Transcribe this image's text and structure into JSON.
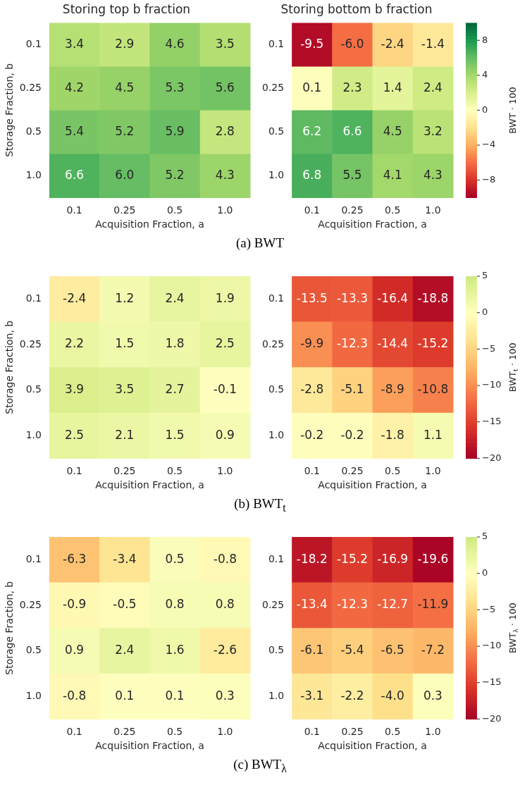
{
  "chart_data": [
    {
      "type": "heatmap",
      "title": "Storing top b fraction",
      "xlabel": "Acquisition Fraction, a",
      "ylabel": "Storage Fraction, b",
      "categories": [
        "0.1",
        "0.25",
        "0.5",
        "1.0"
      ],
      "y_categories": [
        "0.1",
        "0.25",
        "0.5",
        "1.0"
      ],
      "data_labels": true,
      "cells": [
        [
          3.4,
          2.9,
          4.6,
          3.5
        ],
        [
          4.2,
          4.5,
          5.3,
          5.6
        ],
        [
          5.4,
          5.2,
          5.9,
          2.8
        ],
        [
          6.6,
          6.0,
          5.2,
          4.3
        ]
      ],
      "cell_labels": [
        [
          "3.4",
          "2.9",
          "4.6",
          "3.5"
        ],
        [
          "4.2",
          "4.5",
          "5.3",
          "5.6"
        ],
        [
          "5.4",
          "5.2",
          "5.9",
          "2.8"
        ],
        [
          "6.6",
          "6.0",
          "5.2",
          "4.3"
        ]
      ]
    },
    {
      "type": "heatmap",
      "title": "Storing bottom b fraction",
      "xlabel": "Acquisition Fraction, a",
      "categories": [
        "0.1",
        "0.25",
        "0.5",
        "1.0"
      ],
      "y_categories": [
        "0.1",
        "0.25",
        "0.5",
        "1.0"
      ],
      "clim": [
        -10,
        10
      ],
      "cticks": [
        -8,
        -4,
        0,
        4,
        8
      ],
      "clabel": "BWT · 100",
      "annotations": [
        "(a) BWT"
      ],
      "data_labels": true,
      "cells": [
        [
          -9.5,
          -6.0,
          -2.4,
          -1.4
        ],
        [
          0.1,
          2.3,
          1.4,
          2.4
        ],
        [
          6.2,
          6.6,
          4.5,
          3.2
        ],
        [
          6.8,
          5.5,
          4.1,
          4.3
        ]
      ],
      "cell_labels": [
        [
          "-9.5",
          "-6.0",
          "-2.4",
          "-1.4"
        ],
        [
          "0.1",
          "2.3",
          "1.4",
          "2.4"
        ],
        [
          "6.2",
          "6.6",
          "4.5",
          "3.2"
        ],
        [
          "6.8",
          "5.5",
          "4.1",
          "4.3"
        ]
      ]
    },
    {
      "type": "heatmap",
      "xlabel": "Acquisition Fraction, a",
      "ylabel": "Storage Fraction, b",
      "categories": [
        "0.1",
        "0.25",
        "0.5",
        "1.0"
      ],
      "y_categories": [
        "0.1",
        "0.25",
        "0.5",
        "1.0"
      ],
      "data_labels": true,
      "cells": [
        [
          -2.4,
          1.2,
          2.4,
          1.9
        ],
        [
          2.2,
          1.5,
          1.8,
          2.5
        ],
        [
          3.9,
          3.5,
          2.7,
          -0.1
        ],
        [
          2.5,
          2.1,
          1.5,
          0.9
        ]
      ]
    },
    {
      "type": "heatmap",
      "xlabel": "Acquisition Fraction, a",
      "categories": [
        "0.1",
        "0.25",
        "0.5",
        "1.0"
      ],
      "y_categories": [
        "0.1",
        "0.25",
        "0.5",
        "1.0"
      ],
      "clim": [
        -20,
        5
      ],
      "cticks": [
        -20,
        -15,
        -10,
        -5,
        0,
        5
      ],
      "clabel": "BWT$_{t}$ · 100",
      "annotations": [
        "(b) BWT$_{t}$"
      ],
      "data_labels": true,
      "cells": [
        [
          -13.5,
          -13.3,
          -16.4,
          -18.8
        ],
        [
          -9.9,
          -12.3,
          -14.4,
          -15.2
        ],
        [
          -2.8,
          -5.1,
          -8.9,
          -10.8
        ],
        [
          -0.2,
          -0.2,
          -1.8,
          1.1
        ]
      ]
    },
    {
      "type": "heatmap",
      "xlabel": "Acquisition Fraction, a",
      "ylabel": "Storage Fraction, b",
      "categories": [
        "0.1",
        "0.25",
        "0.5",
        "1.0"
      ],
      "y_categories": [
        "0.1",
        "0.25",
        "0.5",
        "1.0"
      ],
      "data_labels": true,
      "cells": [
        [
          -6.3,
          -3.4,
          0.5,
          -0.8
        ],
        [
          -0.9,
          -0.5,
          0.8,
          0.8
        ],
        [
          0.9,
          2.4,
          1.6,
          -2.6
        ],
        [
          -0.8,
          0.1,
          0.1,
          0.3
        ]
      ]
    },
    {
      "type": "heatmap",
      "xlabel": "Acquisition Fraction, a",
      "categories": [
        "0.1",
        "0.25",
        "0.5",
        "1.0"
      ],
      "y_categories": [
        "0.1",
        "0.25",
        "0.5",
        "1.0"
      ],
      "clim": [
        -20,
        5
      ],
      "cticks": [
        -20,
        -15,
        -10,
        -5,
        0,
        5
      ],
      "clabel": "BWT$_{λ}$ · 100",
      "annotations": [
        "(c) BWT$_{λ}$"
      ],
      "data_labels": true,
      "cells": [
        [
          -18.2,
          -15.2,
          -16.9,
          -19.6
        ],
        [
          -13.4,
          -12.3,
          -12.7,
          -11.9
        ],
        [
          -6.1,
          -5.4,
          -6.5,
          -7.2
        ],
        [
          -3.1,
          -2.2,
          -4.0,
          0.3
        ]
      ],
      "cell_labels": [
        [
          "-18.2",
          "-15.2",
          "-16.9",
          "-19.6"
        ],
        [
          "-13.4",
          "-12.3",
          "-12.7",
          "-11.9"
        ],
        [
          "-6.1",
          "-5.4",
          "-6.5",
          "-7.2"
        ],
        [
          "-3.1",
          "-2.2",
          "-4.0",
          "0.3"
        ]
      ]
    }
  ]
}
